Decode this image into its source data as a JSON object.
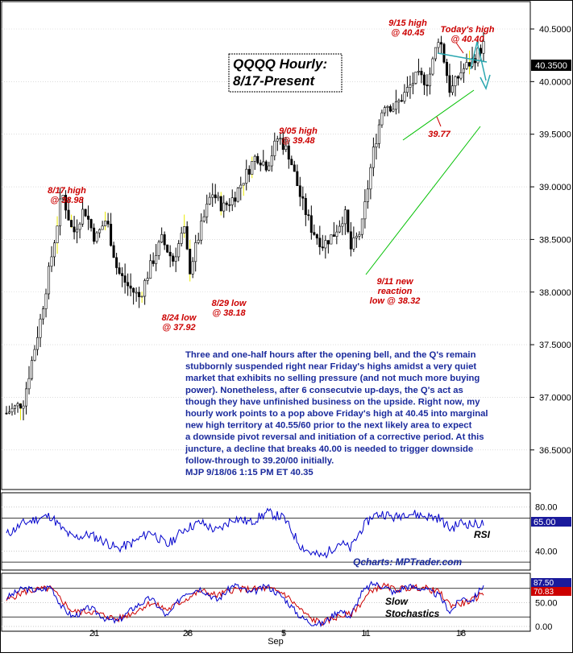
{
  "chart_data": {
    "type": "candlestick",
    "symbol": "QQQQ",
    "title": "QQQQ Hourly:",
    "subtitle": "8/17-Present",
    "price_axis": {
      "ylim": [
        36.3,
        40.8
      ],
      "tick_labels": [
        "40.5000",
        "40.0000",
        "39.5000",
        "39.0000",
        "38.5000",
        "38.0000",
        "37.5000",
        "37.0000",
        "36.5000"
      ],
      "tick_values": [
        40.5,
        40.0,
        39.5,
        39.0,
        38.5,
        38.0,
        37.5,
        37.0,
        36.5
      ],
      "last_price_label": "40.3500",
      "last_price": 40.35
    },
    "x_axis": {
      "tick_labels": [
        "21",
        "28",
        "5",
        "11",
        "18"
      ],
      "month_label": "Sep"
    },
    "price_path": [
      [
        0,
        36.85
      ],
      [
        3,
        36.95
      ],
      [
        6,
        37.7
      ],
      [
        9,
        38.6
      ],
      [
        10,
        38.95
      ],
      [
        12,
        38.55
      ],
      [
        14,
        38.8
      ],
      [
        16,
        38.5
      ],
      [
        18,
        38.7
      ],
      [
        20,
        38.2
      ],
      [
        22,
        38.05
      ],
      [
        24,
        37.95
      ],
      [
        26,
        38.25
      ],
      [
        28,
        38.5
      ],
      [
        30,
        38.3
      ],
      [
        32,
        38.6
      ],
      [
        33,
        38.2
      ],
      [
        35,
        38.6
      ],
      [
        37,
        38.95
      ],
      [
        39,
        38.8
      ],
      [
        41,
        38.9
      ],
      [
        43,
        39.1
      ],
      [
        45,
        39.3
      ],
      [
        47,
        39.2
      ],
      [
        49,
        39.48
      ],
      [
        51,
        39.3
      ],
      [
        53,
        38.9
      ],
      [
        55,
        38.6
      ],
      [
        57,
        38.45
      ],
      [
        59,
        38.55
      ],
      [
        61,
        38.75
      ],
      [
        62,
        38.4
      ],
      [
        64,
        38.6
      ],
      [
        66,
        39.3
      ],
      [
        68,
        39.8
      ],
      [
        70,
        39.75
      ],
      [
        72,
        39.9
      ],
      [
        74,
        40.05
      ],
      [
        76,
        40.0
      ],
      [
        78,
        40.45
      ],
      [
        80,
        39.9
      ],
      [
        82,
        40.1
      ],
      [
        84,
        40.2
      ],
      [
        86,
        40.35
      ]
    ],
    "annotations": [
      {
        "lines": [
          "8/17 high",
          "@ 38.98"
        ]
      },
      {
        "lines": [
          "8/24 low",
          "@ 37.92"
        ]
      },
      {
        "lines": [
          "8/29 low",
          "@ 38.18"
        ]
      },
      {
        "lines": [
          "9/05 high",
          "@ 39.48"
        ]
      },
      {
        "lines": [
          "9/11 new",
          "reaction",
          "low @ 38.32"
        ]
      },
      {
        "lines": [
          "9/15 high",
          "@ 40.45"
        ]
      },
      {
        "lines": [
          "Today's high",
          "@ 40.40"
        ]
      },
      {
        "lines": [
          "39.77"
        ]
      }
    ],
    "commentary": [
      "Three and one-half hours after the opening bell, and the Q's remain",
      "stubbornly suspended right near Friday's highs amidst a very quiet",
      "market that exhibits no selling pressure (and not much more buying",
      "power).  Nonetheless, after 6 consecutvie up-days, the Q's act as",
      "though they have unfinished business on the upside. Right now, my",
      "hourly work points to a pop above Friday's high at 40.45 into marginal",
      "new high territory at 40.55/60 prior to the next likely area to expect",
      "a downside pivot reversal and initiation of a corrective period. At this",
      "juncture, a decline that breaks 40.00 is needed to trigger downside",
      "follow-through to 39.20/00 initially.",
      "MJP 9/18/06 1:15 PM ET  40.35"
    ],
    "rsi_panel": {
      "name": "RSI",
      "tick_labels": [
        "80.00",
        "40.00"
      ],
      "tick_values": [
        80,
        40
      ],
      "value_label": "65.00",
      "ylim": [
        25,
        90
      ],
      "path": [
        [
          0,
          55
        ],
        [
          3,
          65
        ],
        [
          6,
          70
        ],
        [
          8,
          72
        ],
        [
          10,
          60
        ],
        [
          12,
          52
        ],
        [
          15,
          55
        ],
        [
          18,
          48
        ],
        [
          20,
          42
        ],
        [
          23,
          48
        ],
        [
          26,
          58
        ],
        [
          29,
          45
        ],
        [
          32,
          60
        ],
        [
          35,
          66
        ],
        [
          38,
          58
        ],
        [
          41,
          70
        ],
        [
          44,
          66
        ],
        [
          47,
          75
        ],
        [
          50,
          70
        ],
        [
          53,
          45
        ],
        [
          55,
          38
        ],
        [
          57,
          35
        ],
        [
          60,
          48
        ],
        [
          62,
          42
        ],
        [
          64,
          60
        ],
        [
          66,
          72
        ],
        [
          68,
          74
        ],
        [
          70,
          70
        ],
        [
          72,
          75
        ],
        [
          75,
          72
        ],
        [
          78,
          70
        ],
        [
          80,
          60
        ],
        [
          82,
          66
        ],
        [
          84,
          64
        ],
        [
          86,
          65
        ]
      ]
    },
    "stoch_panel": {
      "name_lines": [
        "Slow",
        "Stochastics"
      ],
      "tick_labels": [
        "50.00",
        "0.00"
      ],
      "tick_values": [
        50,
        0
      ],
      "value_labels": [
        "87.50",
        "70.83"
      ],
      "ylim": [
        -5,
        105
      ],
      "k_path": [
        [
          0,
          60
        ],
        [
          3,
          80
        ],
        [
          6,
          75
        ],
        [
          8,
          85
        ],
        [
          10,
          40
        ],
        [
          12,
          20
        ],
        [
          15,
          40
        ],
        [
          18,
          15
        ],
        [
          20,
          10
        ],
        [
          23,
          40
        ],
        [
          26,
          60
        ],
        [
          29,
          20
        ],
        [
          32,
          70
        ],
        [
          35,
          80
        ],
        [
          38,
          55
        ],
        [
          41,
          88
        ],
        [
          44,
          70
        ],
        [
          47,
          85
        ],
        [
          50,
          60
        ],
        [
          53,
          20
        ],
        [
          55,
          8
        ],
        [
          57,
          5
        ],
        [
          60,
          35
        ],
        [
          62,
          20
        ],
        [
          64,
          70
        ],
        [
          66,
          90
        ],
        [
          68,
          85
        ],
        [
          70,
          70
        ],
        [
          72,
          85
        ],
        [
          75,
          80
        ],
        [
          78,
          65
        ],
        [
          80,
          30
        ],
        [
          82,
          60
        ],
        [
          84,
          55
        ],
        [
          86,
          87.5
        ]
      ],
      "d_path": [
        [
          0,
          55
        ],
        [
          3,
          72
        ],
        [
          6,
          78
        ],
        [
          8,
          80
        ],
        [
          10,
          55
        ],
        [
          12,
          30
        ],
        [
          15,
          32
        ],
        [
          18,
          22
        ],
        [
          20,
          15
        ],
        [
          23,
          30
        ],
        [
          26,
          50
        ],
        [
          29,
          35
        ],
        [
          32,
          55
        ],
        [
          35,
          75
        ],
        [
          38,
          65
        ],
        [
          41,
          78
        ],
        [
          44,
          78
        ],
        [
          47,
          80
        ],
        [
          50,
          70
        ],
        [
          53,
          35
        ],
        [
          55,
          15
        ],
        [
          57,
          8
        ],
        [
          60,
          22
        ],
        [
          62,
          25
        ],
        [
          64,
          50
        ],
        [
          66,
          78
        ],
        [
          68,
          85
        ],
        [
          70,
          78
        ],
        [
          72,
          80
        ],
        [
          75,
          82
        ],
        [
          78,
          72
        ],
        [
          80,
          45
        ],
        [
          82,
          48
        ],
        [
          84,
          55
        ],
        [
          86,
          70.83
        ]
      ]
    },
    "credit": "Qcharts: MPTrader.com",
    "colors": {
      "bull": "#000000",
      "bear": "#000000",
      "annotation": "#cc0000",
      "text": "#1a2a9c",
      "trend_green": "#00c000",
      "channel_line": "#2aa7b0",
      "rsi_line": "#0000cc",
      "stoch_k": "#0000cc",
      "stoch_d": "#cc0000",
      "accent_yellow": "#e8e800"
    }
  }
}
